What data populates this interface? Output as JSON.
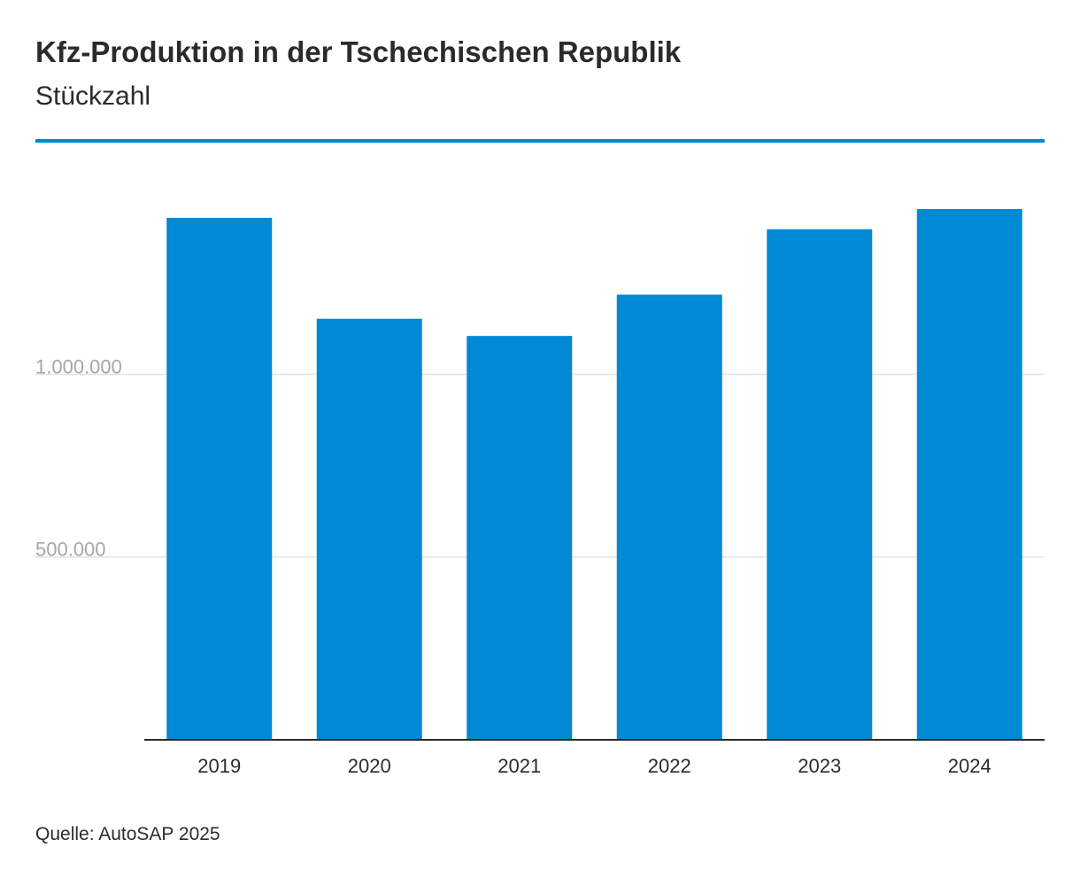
{
  "header": {
    "title": "Kfz-Produktion in der Tschechischen Republik",
    "subtitle": "Stückzahl"
  },
  "footer": {
    "source": "Quelle: AutoSAP 2025"
  },
  "colors": {
    "accent": "#0089d4",
    "bar": "#0089d4",
    "grid": "#e3e3e3",
    "tick_label_y": "#a6a6a6",
    "tick_label_x": "#2b2b2b",
    "axis": "#2b2b2b"
  },
  "chart_data": {
    "type": "bar",
    "title": "Kfz-Produktion in der Tschechischen Republik",
    "subtitle": "Stückzahl",
    "xlabel": "",
    "ylabel": "",
    "categories": [
      "2019",
      "2020",
      "2021",
      "2022",
      "2023",
      "2024"
    ],
    "values": [
      1428000,
      1152000,
      1105000,
      1218000,
      1397000,
      1452000
    ],
    "ylim": [
      0,
      1452000
    ],
    "yticks": [
      500000,
      1000000
    ],
    "ytick_labels": [
      "500.000",
      "1.000.000"
    ],
    "grid": true,
    "legend": "none"
  }
}
